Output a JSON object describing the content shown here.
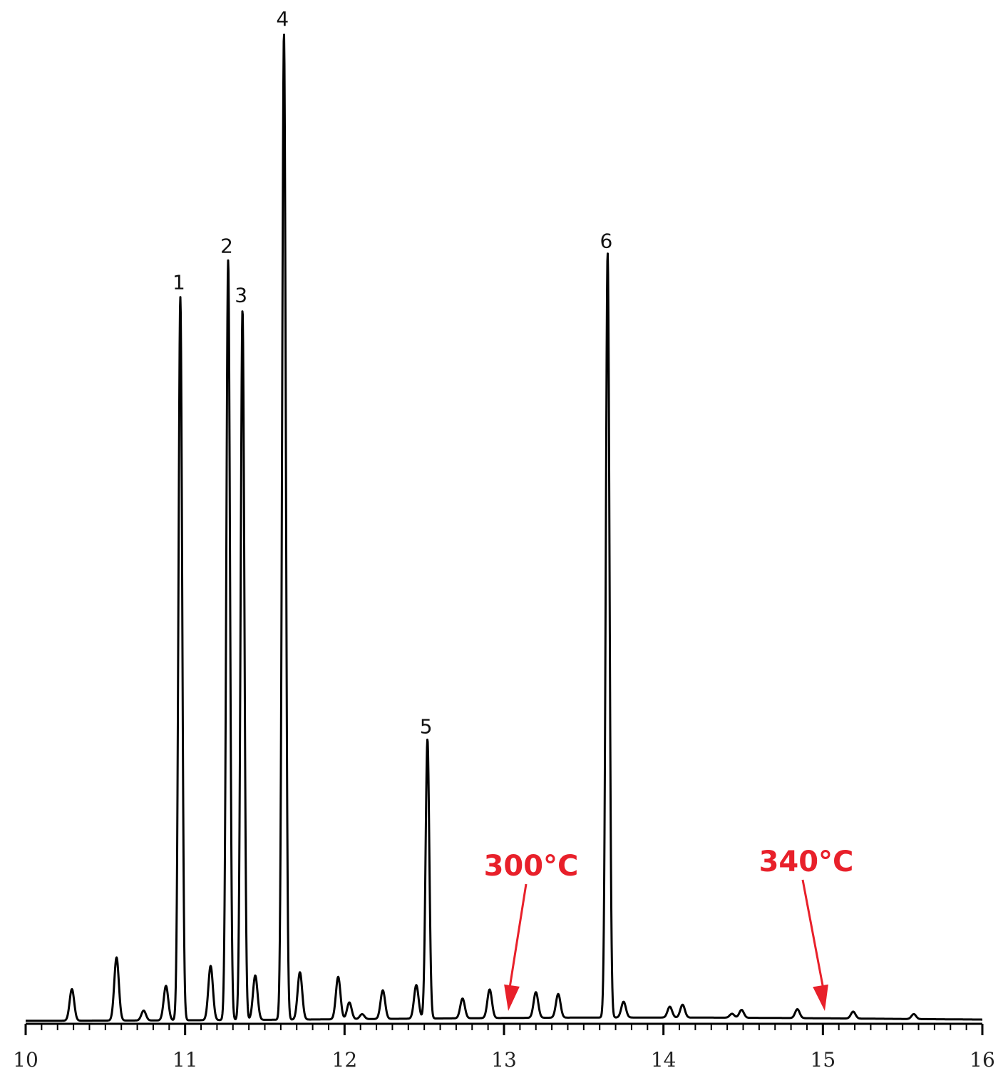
{
  "chart_data": {
    "type": "line",
    "title": "",
    "xlabel": "",
    "ylabel": "",
    "xlim": [
      10,
      16
    ],
    "ylim": [
      0,
      100
    ],
    "grid": false,
    "x_ticks": [
      10,
      11,
      12,
      13,
      14,
      15,
      16
    ],
    "x_tick_labels": [
      "10",
      "11",
      "12",
      "13",
      "14",
      "15",
      "16"
    ],
    "peaks": [
      {
        "x": 10.29,
        "y": 3.2
      },
      {
        "x": 10.57,
        "y": 6.4
      },
      {
        "x": 10.74,
        "y": 1.0
      },
      {
        "x": 10.88,
        "y": 3.5
      },
      {
        "x": 10.97,
        "y": 73.3,
        "label": "1"
      },
      {
        "x": 11.16,
        "y": 5.5
      },
      {
        "x": 11.27,
        "y": 77.0,
        "label": "2"
      },
      {
        "x": 11.36,
        "y": 72.0,
        "label": "3"
      },
      {
        "x": 11.44,
        "y": 4.5
      },
      {
        "x": 11.62,
        "y": 100.0,
        "label": "4"
      },
      {
        "x": 11.72,
        "y": 4.8
      },
      {
        "x": 11.96,
        "y": 4.3
      },
      {
        "x": 12.03,
        "y": 1.7
      },
      {
        "x": 12.11,
        "y": 0.5
      },
      {
        "x": 12.24,
        "y": 2.9
      },
      {
        "x": 12.45,
        "y": 3.4
      },
      {
        "x": 12.52,
        "y": 28.3,
        "label": "5"
      },
      {
        "x": 12.74,
        "y": 2.0
      },
      {
        "x": 12.91,
        "y": 2.9
      },
      {
        "x": 13.2,
        "y": 2.6
      },
      {
        "x": 13.34,
        "y": 2.4
      },
      {
        "x": 13.65,
        "y": 77.5,
        "label": "6"
      },
      {
        "x": 13.75,
        "y": 1.6
      },
      {
        "x": 14.04,
        "y": 1.1
      },
      {
        "x": 14.12,
        "y": 1.3
      },
      {
        "x": 14.43,
        "y": 0.4
      },
      {
        "x": 14.49,
        "y": 0.8
      },
      {
        "x": 14.84,
        "y": 0.9
      },
      {
        "x": 15.19,
        "y": 0.7
      },
      {
        "x": 15.57,
        "y": 0.5
      }
    ],
    "annotations": [
      {
        "text": "300°C",
        "x": 13.03,
        "color": "#e8202a"
      },
      {
        "text": "340°C",
        "x": 15.03,
        "color": "#e8202a"
      }
    ]
  }
}
